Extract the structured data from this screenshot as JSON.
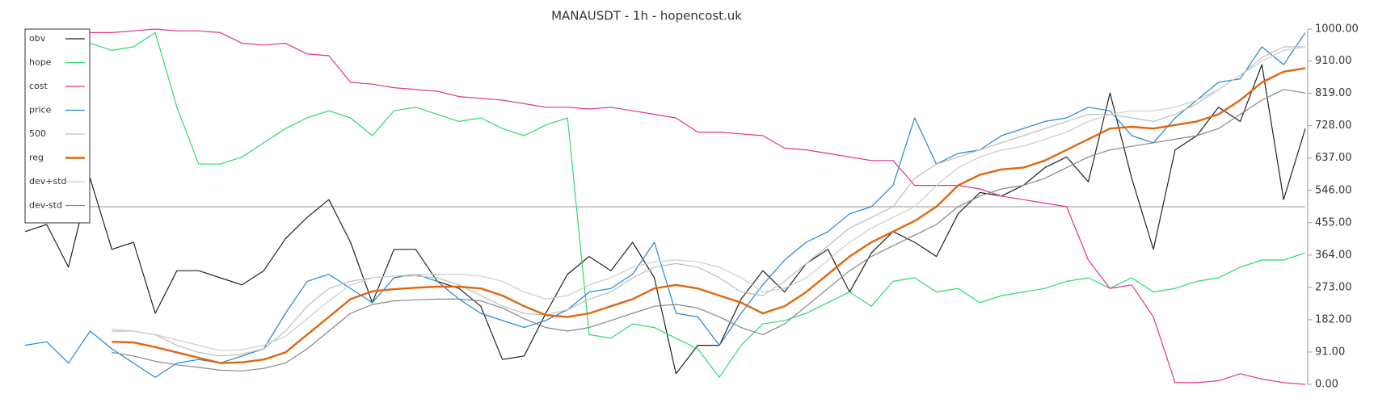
{
  "chart_data": {
    "type": "line",
    "title": "MANAUSDT - 1h - hopencost.uk",
    "ylim": [
      0,
      1000
    ],
    "yticks": [
      {
        "value": 0,
        "label": "0.00"
      },
      {
        "value": 91,
        "label": "91.00"
      },
      {
        "value": 182,
        "label": "182.00"
      },
      {
        "value": 273,
        "label": "273.00"
      },
      {
        "value": 364,
        "label": "364.00"
      },
      {
        "value": 455,
        "label": "455.00"
      },
      {
        "value": 546,
        "label": "546.00"
      },
      {
        "value": 637,
        "label": "637.00"
      },
      {
        "value": 728,
        "label": "728.00"
      },
      {
        "value": 819,
        "label": "819.00"
      },
      {
        "value": 910,
        "label": "910.00"
      },
      {
        "value": 1000,
        "label": "1000.00"
      }
    ],
    "y_axis_side": "right",
    "legend": "upper left",
    "reference_line": 500,
    "series": [
      {
        "name": "obv",
        "color": "#222222",
        "values": [
          430,
          450,
          330,
          580,
          380,
          400,
          200,
          320,
          320,
          300,
          280,
          320,
          410,
          470,
          520,
          400,
          230,
          380,
          380,
          290,
          270,
          220,
          70,
          80,
          200,
          310,
          360,
          320,
          400,
          300,
          30,
          110,
          110,
          240,
          320,
          260,
          340,
          380,
          260,
          370,
          430,
          400,
          360,
          480,
          540,
          530,
          560,
          610,
          640,
          570,
          820,
          580,
          380,
          660,
          700,
          780,
          740,
          900,
          520,
          720
        ]
      },
      {
        "name": "hope",
        "color": "#2fd872",
        "values": [
          null,
          null,
          null,
          960,
          940,
          950,
          990,
          780,
          620,
          620,
          640,
          680,
          720,
          750,
          770,
          750,
          700,
          770,
          780,
          760,
          740,
          750,
          720,
          700,
          730,
          750,
          140,
          130,
          170,
          160,
          130,
          100,
          20,
          110,
          170,
          180,
          200,
          230,
          260,
          220,
          290,
          300,
          260,
          270,
          230,
          250,
          260,
          270,
          290,
          300,
          270,
          300,
          260,
          270,
          290,
          300,
          330,
          350,
          350,
          370
        ]
      },
      {
        "name": "cost",
        "color": "#e0338c",
        "values": [
          null,
          null,
          null,
          990,
          990,
          995,
          1000,
          995,
          995,
          990,
          960,
          955,
          960,
          930,
          925,
          850,
          845,
          835,
          830,
          825,
          810,
          805,
          800,
          790,
          780,
          780,
          775,
          780,
          770,
          760,
          750,
          710,
          710,
          705,
          700,
          665,
          660,
          650,
          640,
          630,
          630,
          560,
          560,
          560,
          550,
          530,
          520,
          510,
          500,
          350,
          270,
          280,
          190,
          5,
          5,
          10,
          30,
          15,
          5,
          0
        ]
      },
      {
        "name": "price",
        "color": "#1f88d6",
        "values": [
          110,
          120,
          60,
          150,
          100,
          60,
          20,
          60,
          70,
          60,
          80,
          100,
          200,
          290,
          310,
          270,
          230,
          300,
          310,
          290,
          240,
          200,
          180,
          160,
          180,
          210,
          260,
          270,
          310,
          400,
          200,
          190,
          110,
          200,
          280,
          350,
          400,
          430,
          480,
          500,
          560,
          750,
          620,
          650,
          660,
          700,
          720,
          740,
          750,
          780,
          770,
          700,
          680,
          750,
          800,
          850,
          860,
          950,
          900,
          990
        ]
      },
      {
        "name": "500",
        "color": "#bdbdbd",
        "values": [
          null,
          null,
          null,
          null,
          150,
          150,
          140,
          110,
          90,
          80,
          85,
          100,
          150,
          220,
          270,
          290,
          300,
          305,
          305,
          300,
          280,
          250,
          220,
          200,
          195,
          210,
          240,
          260,
          300,
          330,
          340,
          330,
          300,
          260,
          250,
          290,
          340,
          390,
          440,
          470,
          500,
          580,
          620,
          640,
          660,
          680,
          700,
          720,
          740,
          760,
          760,
          750,
          740,
          760,
          790,
          830,
          870,
          920,
          950,
          950
        ]
      },
      {
        "name": "reg",
        "color": "#e0660f",
        "values": [
          null,
          null,
          null,
          null,
          120,
          118,
          105,
          90,
          75,
          60,
          62,
          70,
          90,
          140,
          190,
          240,
          262,
          268,
          272,
          275,
          275,
          270,
          250,
          220,
          195,
          190,
          200,
          220,
          240,
          270,
          280,
          270,
          250,
          230,
          200,
          220,
          260,
          310,
          360,
          400,
          430,
          460,
          500,
          560,
          590,
          605,
          610,
          630,
          660,
          690,
          720,
          725,
          720,
          730,
          740,
          760,
          800,
          850,
          880,
          890
        ]
      },
      {
        "name": "dev+std",
        "color": "#cccccc",
        "values": [
          null,
          null,
          null,
          null,
          155,
          150,
          140,
          125,
          110,
          95,
          98,
          110,
          135,
          185,
          235,
          280,
          300,
          305,
          310,
          310,
          310,
          305,
          290,
          260,
          240,
          250,
          280,
          300,
          330,
          345,
          350,
          345,
          330,
          300,
          260,
          270,
          300,
          350,
          400,
          440,
          470,
          500,
          560,
          610,
          640,
          660,
          670,
          690,
          710,
          740,
          760,
          770,
          770,
          780,
          800,
          830,
          870,
          910,
          940,
          950
        ]
      },
      {
        "name": "dev-std",
        "color": "#888888",
        "values": [
          null,
          null,
          null,
          null,
          90,
          80,
          65,
          55,
          48,
          40,
          38,
          45,
          60,
          100,
          150,
          200,
          225,
          235,
          238,
          240,
          240,
          235,
          215,
          185,
          160,
          150,
          160,
          180,
          200,
          220,
          225,
          215,
          190,
          160,
          140,
          170,
          220,
          270,
          320,
          360,
          390,
          420,
          450,
          500,
          530,
          550,
          560,
          580,
          610,
          640,
          660,
          670,
          680,
          690,
          700,
          720,
          760,
          800,
          830,
          820
        ]
      }
    ]
  }
}
